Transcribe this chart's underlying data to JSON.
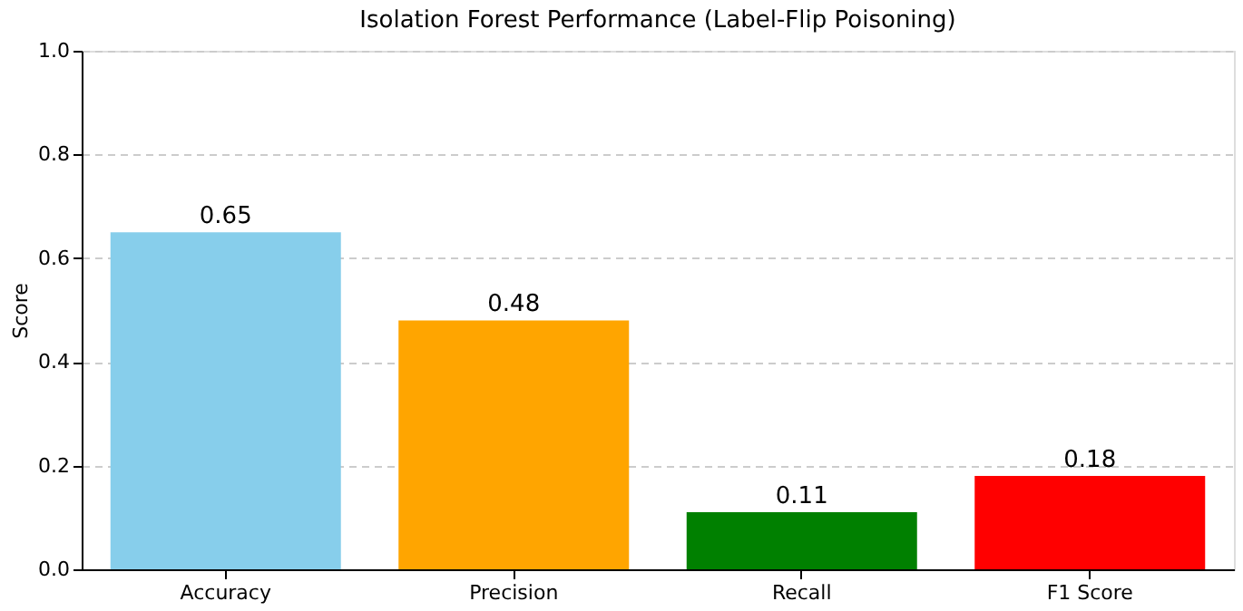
{
  "chart_data": {
    "type": "bar",
    "title": "Isolation Forest Performance (Label-Flip Poisoning)",
    "ylabel": "Score",
    "categories": [
      "Accuracy",
      "Precision",
      "Recall",
      "F1 Score"
    ],
    "values": [
      0.65,
      0.48,
      0.11,
      0.18
    ],
    "colors": [
      "#87ceeb",
      "#ffa500",
      "#008000",
      "#ff0000"
    ],
    "ylim": [
      0,
      1
    ],
    "yticks": [
      {
        "value": 0,
        "label": "0.0"
      },
      0.2,
      0.4,
      0.6,
      0.8,
      {
        "value": 1,
        "label": "1.0"
      }
    ],
    "grid": "y",
    "data_labels": true
  }
}
